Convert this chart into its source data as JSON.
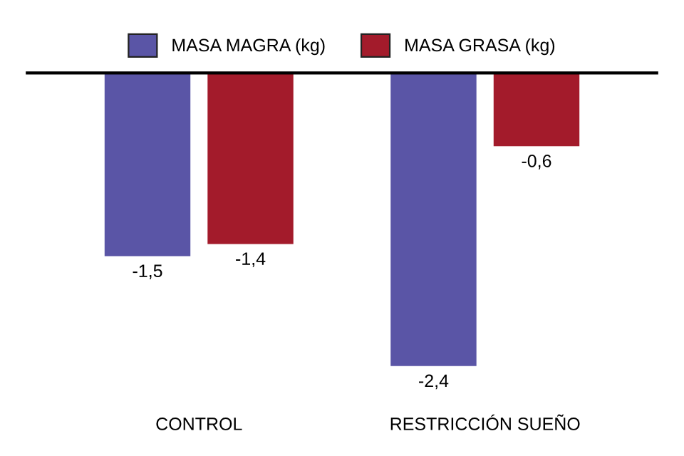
{
  "chart_data": {
    "type": "bar",
    "categories": [
      "CONTROL",
      "RESTRICCIÓN SUEÑO"
    ],
    "series": [
      {
        "name": "MASA MAGRA (kg)",
        "color": "#5a55a6",
        "values": [
          -1.5,
          -2.4
        ],
        "value_labels": [
          "-1,5",
          "-2,4"
        ]
      },
      {
        "name": "MASA GRASA (kg)",
        "color": "#a31b2b",
        "values": [
          -1.4,
          -0.6
        ],
        "value_labels": [
          "-1,4",
          "-0,6"
        ]
      }
    ],
    "legend": "top",
    "grid": false,
    "tick_labels": "x"
  }
}
